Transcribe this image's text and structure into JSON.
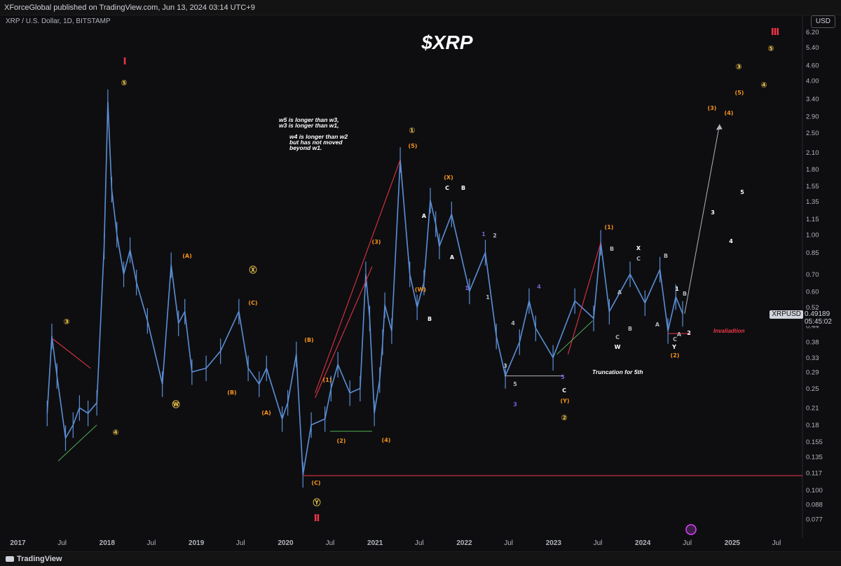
{
  "header": {
    "published": "XForceGlobal published on TradingView.com, Jun 13, 2024 03:14 UTC+9"
  },
  "footer": {
    "brand": "TradingView"
  },
  "currency_button": "USD",
  "ticker": {
    "symbol": "XRPUSD",
    "price": "0.49189",
    "countdown": "05:45:02"
  },
  "colors": {
    "background": "#0e0e11",
    "candle": "#5b8fd6",
    "orange": "#f7931a",
    "yellow": "#f2c94c",
    "red": "#f23645",
    "purple": "#7b5cd6",
    "white": "#ffffff",
    "grey": "#b2b5be",
    "green": "#4caf50",
    "pink": "#e040fb"
  },
  "chart_data": {
    "type": "line",
    "title": "$XRP",
    "subtitle": "XRP / U.S. Dollar, 1D, BITSTAMP",
    "y_scale": "log",
    "ylim": [
      0.065,
      7.2
    ],
    "y_ticks": [
      "6.20",
      "5.40",
      "4.60",
      "4.00",
      "3.40",
      "2.90",
      "2.50",
      "2.10",
      "1.80",
      "1.55",
      "1.35",
      "1.15",
      "1.00",
      "0.85",
      "0.70",
      "0.60",
      "0.52",
      "0.44",
      "0.38",
      "0.33",
      "0.29",
      "0.25",
      "0.21",
      "0.18",
      "0.155",
      "0.135",
      "0.117",
      "0.100",
      "0.088",
      "0.077"
    ],
    "x_ticks": [
      "2017",
      "Jul",
      "2018",
      "Jul",
      "2019",
      "Jul",
      "2020",
      "Jul",
      "2021",
      "Jul",
      "2022",
      "Jul",
      "2023",
      "Jul",
      "2024",
      "Jul",
      "2025",
      "Jul"
    ],
    "series": [
      {
        "x": [
          "2017-05-01",
          "2017-05-20",
          "2017-06-10",
          "2017-07-15",
          "2017-08-15",
          "2017-09-10",
          "2017-10-15",
          "2017-11-20",
          "2017-12-20",
          "2018-01-04",
          "2018-01-20",
          "2018-02-10",
          "2018-03-10",
          "2018-04-05",
          "2018-05-01",
          "2018-06-15",
          "2018-08-15",
          "2018-09-20",
          "2018-10-20",
          "2018-11-15",
          "2018-12-14",
          "2019-02-10",
          "2019-04-10",
          "2019-06-24",
          "2019-08-01",
          "2019-09-15",
          "2019-10-15",
          "2019-12-18",
          "2020-01-10",
          "2020-02-14",
          "2020-03-12",
          "2020-04-15",
          "2020-06-10",
          "2020-07-05",
          "2020-08-02",
          "2020-09-20",
          "2020-11-01",
          "2020-11-24",
          "2020-12-10",
          "2020-12-29",
          "2021-01-20",
          "2021-02-01",
          "2021-02-10",
          "2021-03-10",
          "2021-04-14",
          "2021-05-23",
          "2021-06-22",
          "2021-07-20",
          "2021-08-15",
          "2021-09-06",
          "2021-09-21",
          "2021-11-10",
          "2022-01-22",
          "2022-03-28",
          "2022-05-12",
          "2022-06-18",
          "2022-08-15",
          "2022-09-23",
          "2022-10-20",
          "2022-12-30",
          "2023-03-29",
          "2023-06-14",
          "2023-07-13",
          "2023-08-17",
          "2023-11-10",
          "2024-01-10",
          "2024-03-11",
          "2024-04-13",
          "2024-05-15",
          "2024-06-12"
        ],
        "y": [
          0.2,
          0.4,
          0.28,
          0.16,
          0.18,
          0.21,
          0.2,
          0.22,
          0.9,
          3.3,
          1.5,
          1.0,
          0.7,
          0.87,
          0.65,
          0.46,
          0.26,
          0.76,
          0.45,
          0.5,
          0.29,
          0.3,
          0.35,
          0.5,
          0.3,
          0.26,
          0.3,
          0.19,
          0.22,
          0.34,
          0.115,
          0.18,
          0.19,
          0.25,
          0.31,
          0.24,
          0.25,
          0.7,
          0.47,
          0.2,
          0.27,
          0.38,
          0.53,
          0.42,
          1.96,
          0.7,
          0.52,
          0.65,
          1.36,
          1.1,
          0.9,
          1.2,
          0.6,
          0.85,
          0.4,
          0.28,
          0.38,
          0.55,
          0.43,
          0.33,
          0.55,
          0.47,
          0.93,
          0.5,
          0.7,
          0.54,
          0.73,
          0.42,
          0.57,
          0.49
        ]
      }
    ],
    "projection": {
      "from": [
        "2024-06-20",
        0.49
      ],
      "to": [
        "2024-11-10",
        2.7
      ]
    },
    "annotations": {
      "w5": "w5 is longer than w3,",
      "w3": "w3 is longer than w1,",
      "w4": "w4 is longer than w2",
      "moved": "but has not moved",
      "beyond": "beyond w1.",
      "truncation": "Truncation for 5th",
      "invalidation": "Invaliadtion"
    },
    "wave_labels": [
      "Ⅰ",
      "Ⅱ",
      "Ⅲ",
      "①",
      "②",
      "③",
      "④",
      "⑤",
      "Ⓦ",
      "Ⓧ",
      "Ⓨ",
      "(A)",
      "(B)",
      "(C)",
      "(W)",
      "(X)",
      "(Y)",
      "(1)",
      "(2)",
      "(3)",
      "(4)",
      "(5)",
      "A",
      "B",
      "C",
      "W",
      "X",
      "Y",
      "1",
      "2",
      "3",
      "4",
      "5"
    ]
  }
}
